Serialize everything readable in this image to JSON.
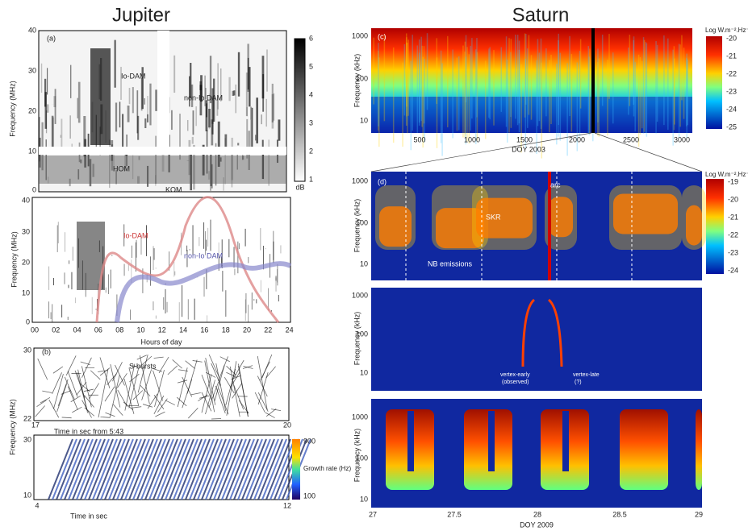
{
  "jupiter": {
    "title": "Jupiter",
    "panel_a": {
      "label": "(a)",
      "y_axis_label": "Frequency (MHz)",
      "yticks": [
        "40",
        "30",
        "20",
        "10",
        "0"
      ],
      "colorbar_ticks": [
        "6",
        "5",
        "4",
        "3",
        "2",
        "1"
      ],
      "colorbar_unit": "dB",
      "annotations": [
        "Io-DAM",
        "non-Io DAM",
        "HOM",
        "KOM"
      ]
    },
    "panel_model": {
      "y_axis_label": "Frequency (MHz)",
      "yticks": [
        "40",
        "30",
        "20",
        "10",
        "0"
      ],
      "xticks": [
        "00",
        "02",
        "04",
        "06",
        "08",
        "10",
        "12",
        "14",
        "16",
        "18",
        "20",
        "22",
        "24"
      ],
      "x_axis_label": "Hours of day",
      "annotations": [
        "Io-DAM",
        "non-Io DAM"
      ]
    },
    "panel_b": {
      "label": "(b)",
      "y_axis_label": "Frequency (MHz)",
      "yticks": [
        "30",
        "22"
      ],
      "xticks": [
        "17",
        "20"
      ],
      "x_axis_label": "Time in sec from 5:43",
      "annotations": [
        "S-bursts"
      ]
    },
    "panel_growth": {
      "yticks": [
        "30",
        "10"
      ],
      "xticks": [
        "4",
        "12"
      ],
      "x_axis_label": "Time in sec",
      "colorbar_ticks": [
        "900",
        "100"
      ],
      "colorbar_label": "Growth rate (Hz)"
    }
  },
  "saturn": {
    "title": "Saturn",
    "panel_c": {
      "label": "(c)",
      "y_axis_label": "Frequency (kHz)",
      "yticks": [
        "1000",
        "100",
        "10"
      ],
      "xticks": [
        "500",
        "1000",
        "1500",
        "2000",
        "2500",
        "3000"
      ],
      "x_axis_label": "DOY 2003",
      "colorbar_label": "Log W.m⁻².Hz⁻¹",
      "colorbar_ticks": [
        "-20",
        "-21",
        "-22",
        "-23",
        "-24",
        "-25"
      ]
    },
    "panel_d": {
      "label": "(d)",
      "y_axis_label": "Frequency (kHz)",
      "yticks": [
        "1000",
        "100",
        "10"
      ],
      "colorbar_label": "Log W.m⁻².Hz⁻¹",
      "colorbar_ticks": [
        "-19",
        "-20",
        "-21",
        "-22",
        "-23",
        "-24"
      ],
      "annotations": [
        "arc",
        "SKR",
        "NB emissions"
      ]
    },
    "panel_model": {
      "y_axis_label": "Frequency (kHz)",
      "yticks": [
        "1000",
        "100",
        "10"
      ],
      "annotations": [
        "vertex-early",
        "(observed)",
        "vertex-late",
        "(?)"
      ]
    },
    "panel_sim": {
      "y_axis_label": "Frequency (kHz)",
      "yticks": [
        "1000",
        "100",
        "10"
      ],
      "xticks": [
        "27",
        "27.5",
        "28",
        "28.5",
        "29"
      ],
      "x_axis_label": "DOY 2009"
    }
  }
}
